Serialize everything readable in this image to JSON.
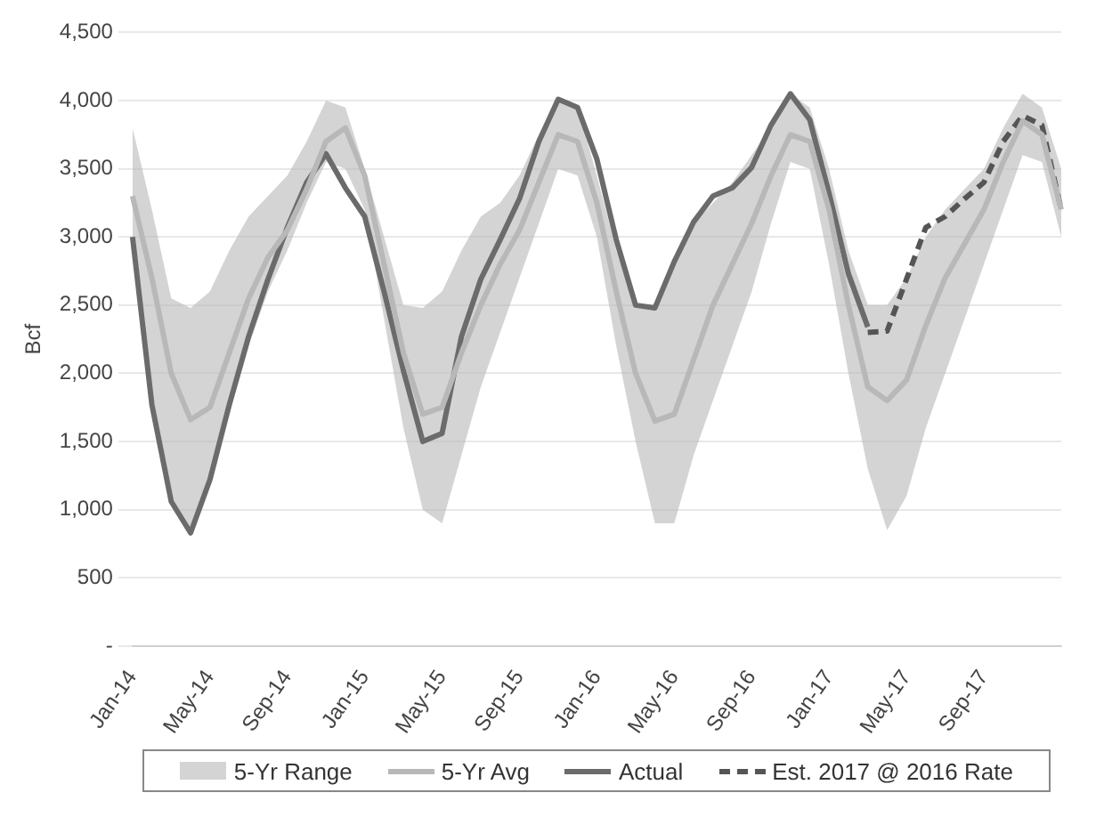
{
  "chart_data": {
    "type": "line",
    "ylabel": "Bcf",
    "annotations": [
      "5-Yr Range"
    ],
    "categories": [
      "Jan-14",
      null,
      null,
      null,
      "May-14",
      null,
      null,
      null,
      "Sep-14",
      null,
      null,
      null,
      "Jan-15",
      null,
      null,
      null,
      "May-15",
      null,
      null,
      null,
      "Sep-15",
      null,
      null,
      null,
      "Jan-16",
      null,
      null,
      null,
      "May-16",
      null,
      null,
      null,
      "Sep-16",
      null,
      null,
      null,
      "Jan-17",
      null,
      null,
      null,
      "May-17",
      null,
      null,
      null,
      "Sep-17",
      null,
      null,
      null,
      null
    ],
    "series": [
      {
        "name": "5-Yr Avg",
        "type": "line",
        "color": "#b8b8b8",
        "values": [
          3300,
          2700,
          2000,
          1660,
          1750,
          2150,
          2550,
          2850,
          3050,
          3350,
          3700,
          3800,
          3450,
          2800,
          2150,
          1700,
          1750,
          2150,
          2500,
          2800,
          3050,
          3400,
          3750,
          3700,
          3250,
          2600,
          2000,
          1650,
          1700,
          2100,
          2500,
          2800,
          3100,
          3450,
          3750,
          3700,
          3200,
          2500,
          1900,
          1800,
          1950,
          2350,
          2700,
          2950,
          3200,
          3550,
          3850,
          3750,
          3200
        ],
        "lower": [
          2900,
          1800,
          1100,
          850,
          1200,
          1700,
          2200,
          2600,
          2900,
          3250,
          3550,
          3500,
          3200,
          2400,
          1600,
          1000,
          900,
          1400,
          1900,
          2300,
          2700,
          3100,
          3500,
          3450,
          3000,
          2200,
          1500,
          900,
          900,
          1400,
          1800,
          2200,
          2600,
          3100,
          3550,
          3500,
          2800,
          2000,
          1300,
          850,
          1100,
          1600,
          2000,
          2400,
          2800,
          3200,
          3600,
          3550,
          3000
        ],
        "upper": [
          3800,
          3200,
          2550,
          2480,
          2600,
          2900,
          3150,
          3300,
          3450,
          3700,
          4000,
          3950,
          3500,
          3000,
          2500,
          2480,
          2600,
          2900,
          3150,
          3250,
          3450,
          3750,
          4000,
          3950,
          3450,
          2900,
          2500,
          2500,
          2800,
          3100,
          3250,
          3400,
          3600,
          3800,
          4050,
          3950,
          3500,
          2900,
          2500,
          2500,
          2700,
          3000,
          3200,
          3350,
          3500,
          3800,
          4050,
          3950,
          3500
        ]
      },
      {
        "name": "Actual",
        "type": "line",
        "color": "#6b6b6b",
        "values": [
          3000,
          1770,
          1060,
          830,
          1220,
          1770,
          2270,
          2690,
          3070,
          3400,
          3610,
          3360,
          3150,
          2600,
          2020,
          1500,
          1560,
          2270,
          2690,
          2980,
          3280,
          3700,
          4010,
          3950,
          3570,
          2980,
          2500,
          2480,
          2820,
          3110,
          3300,
          3360,
          3510,
          3820,
          4050,
          3860,
          3320,
          2730,
          2340,
          null,
          null,
          null,
          null,
          null,
          null,
          null,
          null,
          null,
          null
        ]
      },
      {
        "name": "Est. 2017 @ 2016 Rate",
        "type": "line",
        "color": "#555555",
        "line_style": "dashed",
        "values": [
          null,
          null,
          null,
          null,
          null,
          null,
          null,
          null,
          null,
          null,
          null,
          null,
          null,
          null,
          null,
          null,
          null,
          null,
          null,
          null,
          null,
          null,
          null,
          null,
          null,
          null,
          null,
          null,
          null,
          null,
          null,
          null,
          null,
          null,
          null,
          null,
          null,
          null,
          2300,
          2310,
          2690,
          3070,
          3150,
          3280,
          3400,
          3700,
          3890,
          3820,
          3200
        ]
      }
    ],
    "ylim": [
      0,
      4500
    ],
    "yticks": [
      {
        "value": 0,
        "label": "-"
      },
      500,
      {
        "value": 1000,
        "label": "1,000"
      },
      {
        "value": 1500,
        "label": "1,500"
      },
      {
        "value": 2000,
        "label": "2,000"
      },
      {
        "value": 2500,
        "label": "2,500"
      },
      {
        "value": 3000,
        "label": "3,000"
      },
      {
        "value": 3500,
        "label": "3,500"
      },
      {
        "value": 4000,
        "label": "4,000"
      },
      {
        "value": 4500,
        "label": "4,500"
      }
    ],
    "grid": "y",
    "legend": "bottom",
    "marker": "none"
  }
}
